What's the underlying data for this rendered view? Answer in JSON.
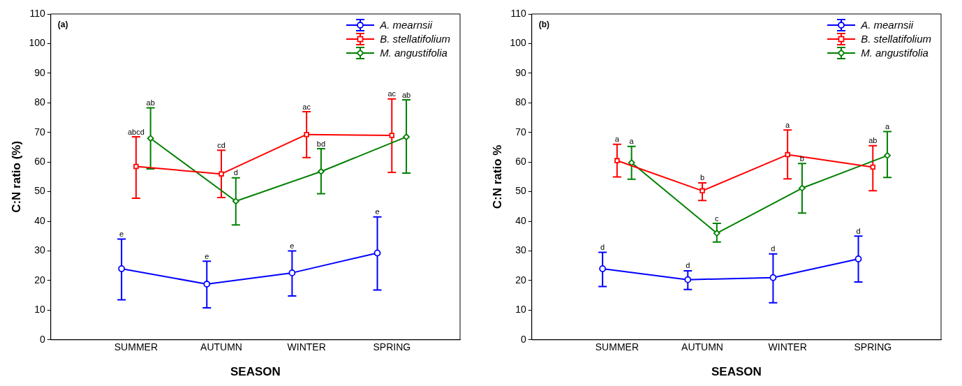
{
  "chart_data": [
    {
      "type": "line",
      "title": "(a)",
      "xlabel": "SEASON",
      "ylabel": "C:N ratio (%)",
      "categories": [
        "SUMMER",
        "AUTUMN",
        "WINTER",
        "SPRING"
      ],
      "ylim": [
        0,
        110
      ],
      "yticks": [
        0,
        10,
        20,
        30,
        40,
        50,
        60,
        70,
        80,
        90,
        100,
        110
      ],
      "grid": false,
      "legend": "top right",
      "line_style": "solid",
      "series": [
        {
          "name": "A. mearnsii",
          "color": "#0000ff",
          "marker": "circle",
          "values": [
            24,
            18.8,
            22.6,
            29.3
          ],
          "errors": [
            [
              13.5,
              34
            ],
            [
              10.8,
              26.5
            ],
            [
              14.8,
              30
            ],
            [
              16.8,
              41.5
            ]
          ]
        },
        {
          "name": "B. stellatifolium",
          "color": "#ff0000",
          "marker": "square",
          "values": [
            58.5,
            56,
            69.3,
            69
          ],
          "errors": [
            [
              47.8,
              68.5
            ],
            [
              48,
              64
            ],
            [
              61.5,
              77
            ],
            [
              56.5,
              81.3
            ]
          ]
        },
        {
          "name": "M. angustifolia",
          "color": "#008000",
          "marker": "diamond",
          "values": [
            68,
            46.8,
            56.8,
            68.5
          ],
          "errors": [
            [
              57.7,
              78.3
            ],
            [
              38.8,
              54.7
            ],
            [
              49.3,
              64.5
            ],
            [
              56.3,
              81
            ]
          ]
        }
      ],
      "annotations": [
        "e",
        "e",
        "e",
        "e",
        "abcd",
        "cd",
        "ac",
        "ac",
        "ab",
        "d",
        "bd",
        "ab"
      ]
    },
    {
      "type": "line",
      "title": "(b)",
      "xlabel": "SEASON",
      "ylabel": "C:N ratio %",
      "categories": [
        "SUMMER",
        "AUTUMN",
        "WINTER",
        "SPRING"
      ],
      "ylim": [
        0,
        110
      ],
      "yticks": [
        0,
        10,
        20,
        30,
        40,
        50,
        60,
        70,
        80,
        90,
        100,
        110
      ],
      "grid": false,
      "legend": "top right",
      "line_style": "solid",
      "series": [
        {
          "name": "A. mearnsii",
          "color": "#0000ff",
          "marker": "circle",
          "values": [
            24,
            20.3,
            21,
            27.3
          ],
          "errors": [
            [
              18,
              29.5
            ],
            [
              17,
              23.3
            ],
            [
              12.5,
              29
            ],
            [
              19.5,
              35
            ]
          ]
        },
        {
          "name": "B. stellatifolium",
          "color": "#ff0000",
          "marker": "square",
          "values": [
            60.5,
            50.3,
            62.5,
            58.3
          ],
          "errors": [
            [
              55,
              66
            ],
            [
              47,
              53
            ],
            [
              54.3,
              70.8
            ],
            [
              50.3,
              65.5
            ]
          ]
        },
        {
          "name": "M. angustifolia",
          "color": "#008000",
          "marker": "diamond",
          "values": [
            59.8,
            36,
            51.2,
            62.2
          ],
          "errors": [
            [
              54.2,
              65.3
            ],
            [
              33,
              39.3
            ],
            [
              42.8,
              59.5
            ],
            [
              54.8,
              70.3
            ]
          ]
        }
      ],
      "annotations": [
        "d",
        "d",
        "d",
        "d",
        "a",
        "b",
        "a",
        "ab",
        "a",
        "c",
        "b",
        "a"
      ]
    }
  ]
}
